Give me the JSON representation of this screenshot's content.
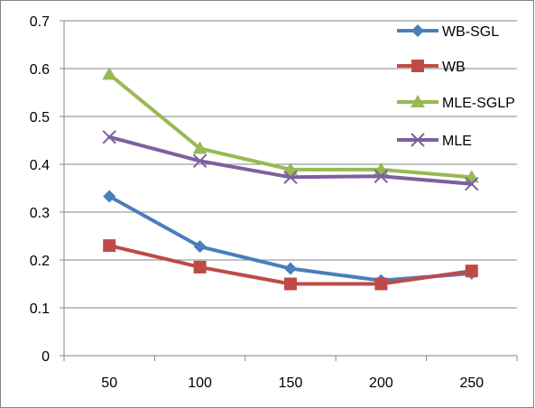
{
  "chart_data": {
    "type": "line",
    "x": [
      50,
      100,
      150,
      200,
      250
    ],
    "categories": [
      "50",
      "100",
      "150",
      "200",
      "250"
    ],
    "ylim": [
      0,
      0.7
    ],
    "yticks": [
      "0",
      "0.1",
      "0.2",
      "0.3",
      "0.4",
      "0.5",
      "0.6",
      "0.7"
    ],
    "grid": true,
    "legend_position": "top-right",
    "series": [
      {
        "name": "WB-SGL",
        "values": [
          0.333,
          0.228,
          0.182,
          0.157,
          0.172
        ],
        "color": "#4A7EBB",
        "marker": "diamond-icon"
      },
      {
        "name": "WB",
        "values": [
          0.23,
          0.185,
          0.15,
          0.15,
          0.177
        ],
        "color": "#BE4B48",
        "marker": "square-icon"
      },
      {
        "name": "MLE-SGLP",
        "values": [
          0.588,
          0.433,
          0.389,
          0.389,
          0.373
        ],
        "color": "#98B954",
        "marker": "triangle-icon"
      },
      {
        "name": "MLE",
        "values": [
          0.457,
          0.407,
          0.373,
          0.375,
          0.359
        ],
        "color": "#7D60A0",
        "marker": "cross-icon"
      }
    ]
  }
}
